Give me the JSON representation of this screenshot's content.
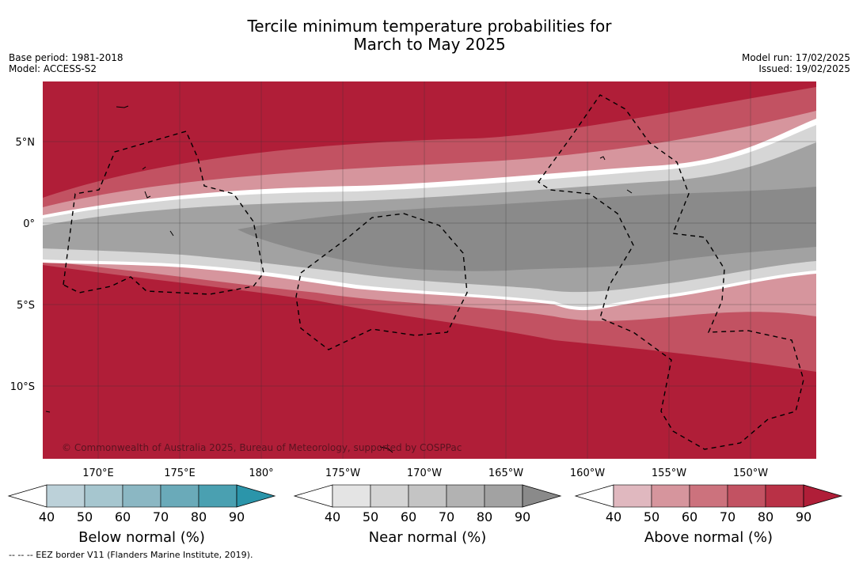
{
  "header": {
    "title_line1": "Tercile minimum temperature probabilities for",
    "title_line2": "March to May 2025",
    "base_period": "Base period: 1981-2018",
    "model": "Model: ACCESS-S2",
    "model_run": "Model run: 17/02/2025",
    "issued": "Issued: 19/02/2025"
  },
  "map": {
    "lat_labels": [
      "5°N",
      "0°",
      "5°S",
      "10°S"
    ],
    "lon_labels": [
      "170°E",
      "175°E",
      "180°",
      "175°W",
      "170°W",
      "165°W",
      "160°W",
      "155°W",
      "150°W"
    ],
    "copyright": "© Commonwealth of Australia 2025, Bureau of Meteorology, supported by COSPPac",
    "category_colors": {
      "above": [
        "#e0b8bf",
        "#d6959d",
        "#cc727d",
        "#c25262",
        "#b93146",
        "#b01e38"
      ],
      "near": [
        "#e8e8e8",
        "#d6d6d6",
        "#c4c4c4",
        "#b2b2b2",
        "#a2a2a2",
        "#8a8a8a"
      ]
    }
  },
  "colorbars": [
    {
      "label": "Below normal (%)",
      "ticks": [
        "40",
        "50",
        "60",
        "70",
        "80",
        "90"
      ],
      "colors": [
        "#bcd1d9",
        "#a6c6cf",
        "#8bb7c3",
        "#6aaab9",
        "#4aa0b1",
        "#2b95aa"
      ]
    },
    {
      "label": "Near normal (%)",
      "ticks": [
        "40",
        "50",
        "60",
        "70",
        "80",
        "90"
      ],
      "colors": [
        "#e4e4e4",
        "#d4d4d4",
        "#c4c4c4",
        "#b2b2b2",
        "#a2a2a2",
        "#8a8a8a"
      ]
    },
    {
      "label": "Above normal (%)",
      "ticks": [
        "40",
        "50",
        "60",
        "70",
        "80",
        "90"
      ],
      "colors": [
        "#e0b8bf",
        "#d6959d",
        "#cc727d",
        "#c25262",
        "#b93146",
        "#b01e38"
      ]
    }
  ],
  "footnote": "-- -- -- EEZ border V11 (Flanders Marine Institute, 2019)."
}
